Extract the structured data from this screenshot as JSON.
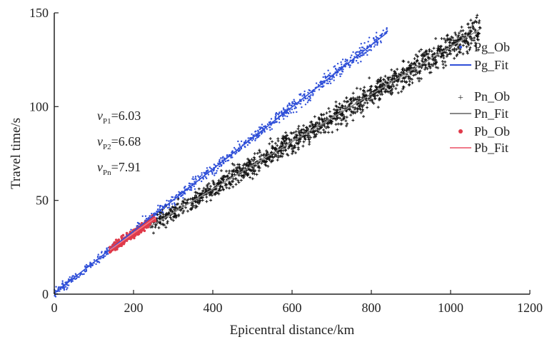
{
  "chart_data": {
    "type": "scatter",
    "xlabel": "Epicentral distance/km",
    "ylabel": "Travel time/s",
    "xlim": [
      0,
      1200
    ],
    "ylim": [
      0,
      150
    ],
    "xticks": [
      0,
      200,
      400,
      600,
      800,
      1000,
      1200
    ],
    "yticks": [
      0,
      50,
      100,
      150
    ],
    "grid": false,
    "legend_position": "top-right",
    "colors": {
      "Pg": "#2f4fd8",
      "Pn": "#111111",
      "Pb": "#e03a4a",
      "Pn_fit": "#888888",
      "Pb_fit": "#f07a8a"
    },
    "series": [
      {
        "name": "Pg_Ob",
        "kind": "points",
        "color": "#2f4fd8",
        "x_range": [
          0,
          840
        ],
        "slope": 0.1655,
        "intercept": 0.5,
        "note_count": 900
      },
      {
        "name": "Pg_Fit",
        "kind": "line",
        "color": "#2f4fd8",
        "x": [
          0,
          840
        ],
        "y": [
          0.5,
          139.5
        ]
      },
      {
        "name": "Pn_Ob",
        "kind": "points",
        "color": "#111111",
        "x_range": [
          240,
          1075
        ],
        "slope": 0.1264,
        "intercept": 5.5,
        "note_count": 1400
      },
      {
        "name": "Pn_Fit",
        "kind": "line",
        "color": "#888888",
        "x": [
          240,
          1075
        ],
        "y": [
          35.8,
          141.4
        ]
      },
      {
        "name": "Pb_Ob",
        "kind": "points",
        "color": "#e03a4a",
        "x_range": [
          140,
          255
        ],
        "slope": 0.1497,
        "intercept": 2.5,
        "note_count": 250
      },
      {
        "name": "Pb_Fit",
        "kind": "line",
        "color": "#f07a8a",
        "x": [
          140,
          255
        ],
        "y": [
          23.5,
          40.7
        ]
      }
    ],
    "annotations": [
      {
        "sym": "v",
        "sub": "P1",
        "value": "=6.03"
      },
      {
        "sym": "v",
        "sub": "P2",
        "value": "=6.68"
      },
      {
        "sym": "v",
        "sub": "Pn",
        "value": "=7.91"
      }
    ]
  }
}
